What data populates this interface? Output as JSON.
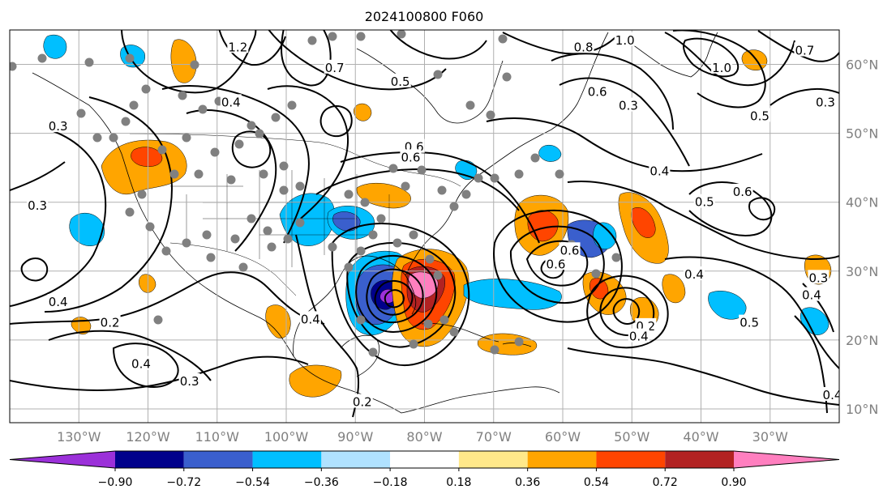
{
  "title": "2024100800 F060",
  "map": {
    "lon_min": -140,
    "lon_max": -20,
    "lat_min": 8,
    "lat_max": 65,
    "lon_ticks": [
      {
        "value": -130,
        "label": "130°W"
      },
      {
        "value": -120,
        "label": "120°W"
      },
      {
        "value": -110,
        "label": "110°W"
      },
      {
        "value": -100,
        "label": "100°W"
      },
      {
        "value": -90,
        "label": "90°W"
      },
      {
        "value": -80,
        "label": "80°W"
      },
      {
        "value": -70,
        "label": "70°W"
      },
      {
        "value": -60,
        "label": "60°W"
      },
      {
        "value": -50,
        "label": "50°W"
      },
      {
        "value": -40,
        "label": "40°W"
      },
      {
        "value": -30,
        "label": "30°W"
      }
    ],
    "lat_ticks": [
      {
        "value": 10,
        "label": "10°N"
      },
      {
        "value": 20,
        "label": "20°N"
      },
      {
        "value": 30,
        "label": "30°N"
      },
      {
        "value": 40,
        "label": "40°N"
      },
      {
        "value": 50,
        "label": "50°N"
      },
      {
        "value": 60,
        "label": "60°N"
      }
    ],
    "gridlines": true
  },
  "contours": {
    "labels": [
      {
        "text": "1.2",
        "lon": -107,
        "lat": 62.5
      },
      {
        "text": "0.8",
        "lon": -57,
        "lat": 62.5
      },
      {
        "text": "1.0",
        "lon": -51,
        "lat": 63.5
      },
      {
        "text": "0.7",
        "lon": -93,
        "lat": 59.5
      },
      {
        "text": "0.5",
        "lon": -83.5,
        "lat": 57.5
      },
      {
        "text": "0.4",
        "lon": -108,
        "lat": 54.5
      },
      {
        "text": "0.3",
        "lon": -133,
        "lat": 51
      },
      {
        "text": "0.3",
        "lon": -136,
        "lat": 39.5
      },
      {
        "text": "0.4",
        "lon": -133,
        "lat": 25.5
      },
      {
        "text": "0.2",
        "lon": -125.5,
        "lat": 22.5
      },
      {
        "text": "0.4",
        "lon": -121,
        "lat": 16.5
      },
      {
        "text": "0.3",
        "lon": -114,
        "lat": 14
      },
      {
        "text": "0.4",
        "lon": -96.5,
        "lat": 23
      },
      {
        "text": "0.2",
        "lon": -89,
        "lat": 11
      },
      {
        "text": "0.6",
        "lon": -81.5,
        "lat": 48
      },
      {
        "text": "0.6",
        "lon": -82,
        "lat": 46.5
      },
      {
        "text": "0.6",
        "lon": -55,
        "lat": 56
      },
      {
        "text": "0.3",
        "lon": -50.5,
        "lat": 54
      },
      {
        "text": "0.4",
        "lon": -46,
        "lat": 44.5
      },
      {
        "text": "0.5",
        "lon": -39.5,
        "lat": 40
      },
      {
        "text": "0.6",
        "lon": -34,
        "lat": 41.5
      },
      {
        "text": "0.4",
        "lon": -41,
        "lat": 29.5
      },
      {
        "text": "0.5",
        "lon": -33,
        "lat": 22.5
      },
      {
        "text": "0.5",
        "lon": -31.5,
        "lat": 52.5
      },
      {
        "text": "0.3",
        "lon": -22,
        "lat": 54.5
      },
      {
        "text": "0.7",
        "lon": -25,
        "lat": 62
      },
      {
        "text": "1.0",
        "lon": -37,
        "lat": 59.5
      },
      {
        "text": "0.3",
        "lon": -23,
        "lat": 29
      },
      {
        "text": "0.4",
        "lon": -24,
        "lat": 26.5
      },
      {
        "text": "0.6",
        "lon": -61,
        "lat": 31
      },
      {
        "text": "0.6",
        "lon": -59,
        "lat": 33
      },
      {
        "text": "0.2",
        "lon": -48,
        "lat": 22
      },
      {
        "text": "0.4",
        "lon": -49,
        "lat": 20.5
      },
      {
        "text": "0.4",
        "lon": -21,
        "lat": 12
      }
    ]
  },
  "colorbar": {
    "labels": [
      "−0.90",
      "−0.72",
      "−0.54",
      "−0.36",
      "−0.18",
      "0.18",
      "0.36",
      "0.54",
      "0.72",
      "0.90"
    ],
    "colors": [
      "#9b30d9",
      "#00008b",
      "#3a5fcd",
      "#00bfff",
      "#b0e2ff",
      "#ffffff",
      "#ffe88a",
      "#ffa500",
      "#ff4500",
      "#b22222",
      "#ff7fbf"
    ]
  }
}
